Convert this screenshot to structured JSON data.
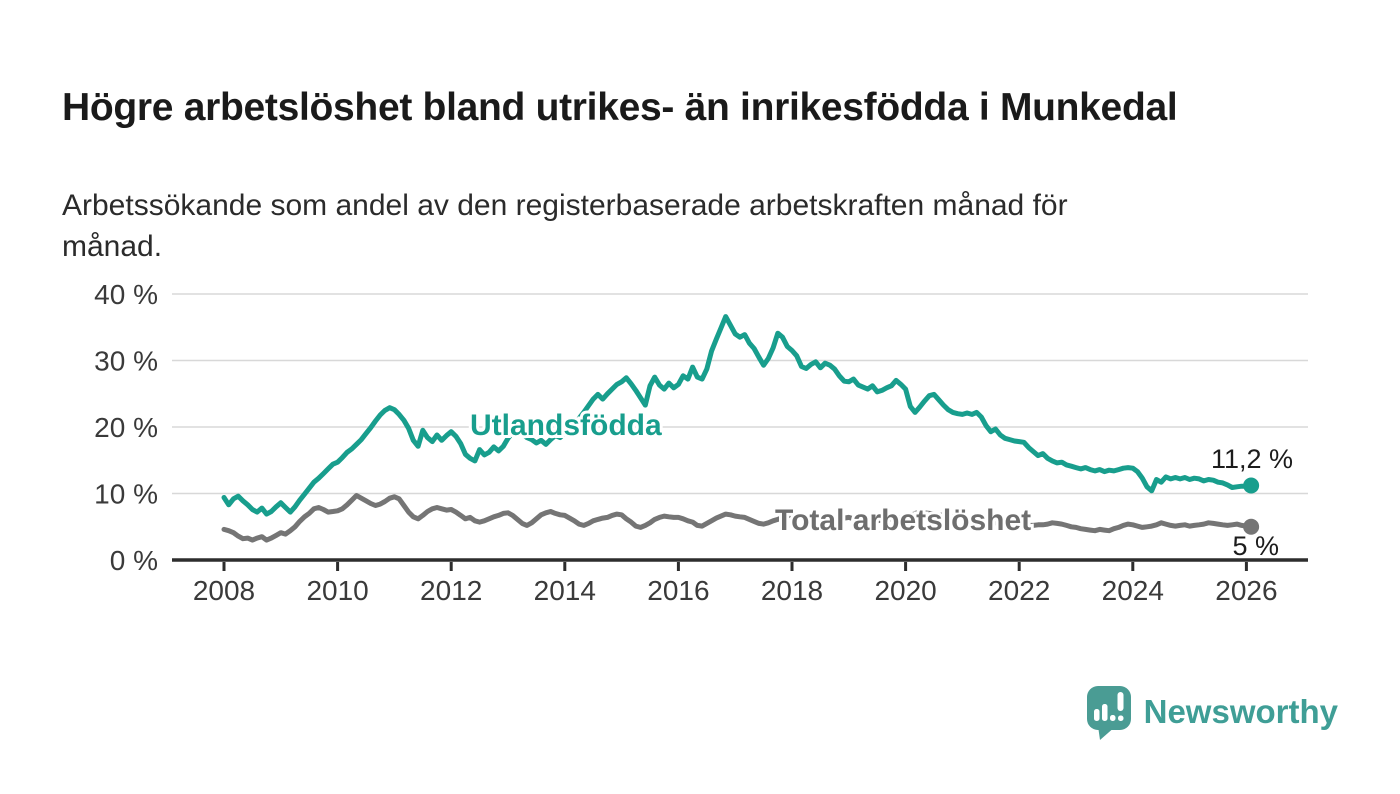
{
  "page": {
    "background": "#ffffff"
  },
  "header": {
    "title": "Högre arbetslöshet bland utrikes- än inrikesfödda i Munkedal",
    "subtitle": "Arbetssökande som andel av den registerbaserade arbetskraften månad för månad."
  },
  "chart_data": {
    "type": "line",
    "title": "Högre arbetslöshet bland utrikes- än inrikesfödda i Munkedal",
    "x_axis": {
      "ticks": [
        2008,
        2010,
        2012,
        2014,
        2016,
        2018,
        2020,
        2022,
        2024,
        2026
      ],
      "range": [
        2007.1,
        2027.1
      ]
    },
    "y_axis": {
      "ticks": [
        0,
        10,
        20,
        30,
        40
      ],
      "suffix": " %",
      "range": [
        0,
        42
      ],
      "grid": true
    },
    "legend_position": "inline-labels",
    "colors": {
      "axis": "#2d2d2d",
      "grid": "#d8d8d8",
      "tick_label": "#3a3a3a",
      "end_label": "#1c1c1c"
    },
    "series": [
      {
        "name": "Utlandsfödda",
        "color": "#189e8d",
        "label_color": "#189e8d",
        "end_label": "11,2 %",
        "last_value": 11.2,
        "start_year": 2008,
        "points_per_year": 12,
        "values": [
          9.4,
          8.3,
          9.2,
          9.6,
          8.9,
          8.3,
          7.6,
          7.2,
          7.8,
          6.9,
          7.3,
          8.0,
          8.6,
          7.9,
          7.2,
          8.0,
          9.0,
          9.9,
          10.8,
          11.7,
          12.3,
          13.0,
          13.7,
          14.4,
          14.7,
          15.4,
          16.2,
          16.7,
          17.4,
          18.1,
          19.0,
          19.9,
          20.9,
          21.8,
          22.5,
          22.9,
          22.6,
          21.9,
          21.0,
          19.8,
          18.0,
          17.1,
          19.5,
          18.4,
          17.8,
          18.8,
          18.0,
          18.7,
          19.3,
          18.6,
          17.5,
          15.9,
          15.3,
          14.9,
          16.6,
          15.8,
          16.2,
          17.0,
          16.4,
          17.1,
          18.3,
          19.2,
          19.7,
          19.0,
          18.4,
          18.1,
          17.6,
          18.0,
          17.4,
          18.1,
          18.7,
          18.4,
          19.1,
          19.7,
          20.5,
          21.3,
          22.2,
          23.2,
          24.2,
          24.9,
          24.2,
          25.0,
          25.7,
          26.4,
          26.8,
          27.4,
          26.5,
          25.5,
          24.4,
          23.3,
          26.2,
          27.5,
          26.3,
          25.7,
          26.6,
          25.9,
          26.4,
          27.7,
          27.2,
          29.0,
          27.5,
          27.2,
          28.7,
          31.4,
          33.2,
          34.9,
          36.6,
          35.3,
          34.0,
          33.5,
          33.9,
          32.6,
          31.8,
          30.5,
          29.3,
          30.3,
          31.9,
          34.1,
          33.5,
          32.1,
          31.5,
          30.7,
          29.1,
          28.8,
          29.4,
          29.8,
          28.9,
          29.6,
          29.3,
          28.7,
          27.7,
          26.9,
          26.8,
          27.2,
          26.3,
          26.0,
          25.7,
          26.2,
          25.3,
          25.5,
          25.9,
          26.2,
          27.0,
          26.4,
          25.7,
          23.1,
          22.2,
          23.0,
          23.9,
          24.7,
          24.9,
          24.1,
          23.3,
          22.6,
          22.2,
          22.0,
          21.9,
          22.1,
          21.9,
          22.2,
          21.5,
          20.2,
          19.3,
          19.7,
          18.8,
          18.3,
          18.1,
          17.9,
          17.8,
          17.7,
          16.9,
          16.3,
          15.7,
          16.0,
          15.3,
          14.9,
          14.6,
          14.7,
          14.3,
          14.1,
          13.9,
          13.7,
          13.9,
          13.6,
          13.4,
          13.6,
          13.3,
          13.5,
          13.4,
          13.6,
          13.8,
          13.9,
          13.8,
          13.3,
          12.3,
          11.0,
          10.4,
          12.1,
          11.7,
          12.5,
          12.2,
          12.4,
          12.2,
          12.4,
          12.1,
          12.3,
          12.2,
          11.9,
          12.1,
          12.0,
          11.7,
          11.6,
          11.3,
          10.9,
          11.0,
          11.1,
          11.1,
          11.2
        ]
      },
      {
        "name": "Total arbetslöshet",
        "color": "#757575",
        "label_color": "#6e6e6e",
        "end_label": "5 %",
        "last_value": 5.0,
        "start_year": 2008,
        "points_per_year": 12,
        "values": [
          4.6,
          4.4,
          4.1,
          3.6,
          3.2,
          3.3,
          3.0,
          3.3,
          3.5,
          3.0,
          3.3,
          3.7,
          4.1,
          3.9,
          4.4,
          5.0,
          5.8,
          6.5,
          7.0,
          7.7,
          7.9,
          7.6,
          7.2,
          7.3,
          7.4,
          7.7,
          8.3,
          9.0,
          9.7,
          9.3,
          8.9,
          8.5,
          8.2,
          8.4,
          8.8,
          9.3,
          9.5,
          9.2,
          8.2,
          7.2,
          6.5,
          6.2,
          6.7,
          7.3,
          7.7,
          7.9,
          7.7,
          7.5,
          7.6,
          7.2,
          6.7,
          6.2,
          6.4,
          5.9,
          5.7,
          5.9,
          6.2,
          6.5,
          6.7,
          7.0,
          7.1,
          6.7,
          6.1,
          5.5,
          5.2,
          5.6,
          6.2,
          6.8,
          7.1,
          7.3,
          7.0,
          6.8,
          6.7,
          6.3,
          5.9,
          5.4,
          5.2,
          5.5,
          5.9,
          6.1,
          6.3,
          6.4,
          6.7,
          6.9,
          6.8,
          6.2,
          5.7,
          5.1,
          4.9,
          5.2,
          5.6,
          6.1,
          6.4,
          6.6,
          6.5,
          6.4,
          6.4,
          6.2,
          5.9,
          5.7,
          5.2,
          5.1,
          5.5,
          5.9,
          6.3,
          6.6,
          6.9,
          6.8,
          6.6,
          6.5,
          6.4,
          6.1,
          5.8,
          5.5,
          5.4,
          5.6,
          5.9,
          6.1,
          6.4,
          6.6,
          6.8,
          6.7,
          6.4,
          6.1,
          5.8,
          5.6,
          5.4,
          5.6,
          5.8,
          6.0,
          6.1,
          6.3,
          6.4,
          6.2,
          6.0,
          5.8,
          5.6,
          5.7,
          5.9,
          6.0,
          6.1,
          6.2,
          6.3,
          6.4,
          6.5,
          6.6,
          7.0,
          7.2,
          7.1,
          7.0,
          6.9,
          6.8,
          6.7,
          6.6,
          6.5,
          6.4,
          6.4,
          6.3,
          6.2,
          6.0,
          5.9,
          5.8,
          5.7,
          5.6,
          5.6,
          5.5,
          5.5,
          5.4,
          5.4,
          5.3,
          5.2,
          5.2,
          5.3,
          5.3,
          5.4,
          5.6,
          5.5,
          5.4,
          5.2,
          5.0,
          4.9,
          4.7,
          4.6,
          4.5,
          4.4,
          4.6,
          4.5,
          4.4,
          4.7,
          4.9,
          5.2,
          5.4,
          5.3,
          5.1,
          4.9,
          5.0,
          5.1,
          5.3,
          5.6,
          5.4,
          5.2,
          5.1,
          5.2,
          5.3,
          5.1,
          5.2,
          5.3,
          5.4,
          5.6,
          5.5,
          5.4,
          5.3,
          5.2,
          5.3,
          5.4,
          5.2,
          5.1,
          5.0
        ]
      }
    ]
  },
  "footer": {
    "brand": "Newsworthy",
    "brand_color": "#3f9e96",
    "icon_color": "#4a9c94"
  }
}
